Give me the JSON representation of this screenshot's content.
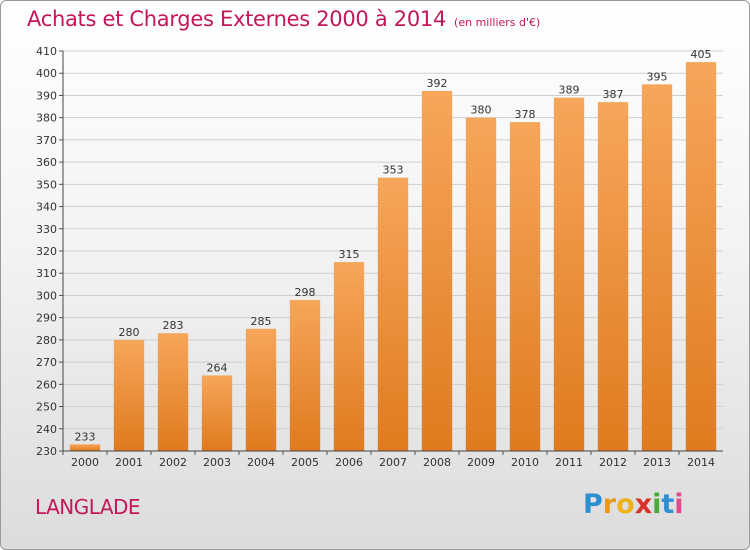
{
  "title": "Achats et Charges Externes 2000 à 2014",
  "subtitle": "(en milliers d'€)",
  "commune": "LANGLADE",
  "logo": {
    "p": "P",
    "r": "r",
    "o": "o",
    "x": "x",
    "i1": "i",
    "t": "t",
    "i2": "i"
  },
  "colors": {
    "bar_top": "#f6a65a",
    "bar_bottom": "#e07a1e",
    "title": "#c4165a"
  },
  "chart_data": {
    "type": "bar",
    "title": "Achats et Charges Externes 2000 à 2014",
    "subtitle": "(en milliers d'€)",
    "xlabel": "",
    "ylabel": "",
    "categories": [
      "2000",
      "2001",
      "2002",
      "2003",
      "2004",
      "2005",
      "2006",
      "2007",
      "2008",
      "2009",
      "2010",
      "2011",
      "2012",
      "2013",
      "2014"
    ],
    "values": [
      233,
      280,
      283,
      264,
      285,
      298,
      315,
      353,
      392,
      380,
      378,
      389,
      387,
      395,
      405
    ],
    "ylim": [
      230,
      410
    ],
    "yticks": [
      230,
      240,
      250,
      260,
      270,
      280,
      290,
      300,
      310,
      320,
      330,
      340,
      350,
      360,
      370,
      380,
      390,
      400,
      410
    ],
    "grid": true,
    "legend": "none"
  }
}
